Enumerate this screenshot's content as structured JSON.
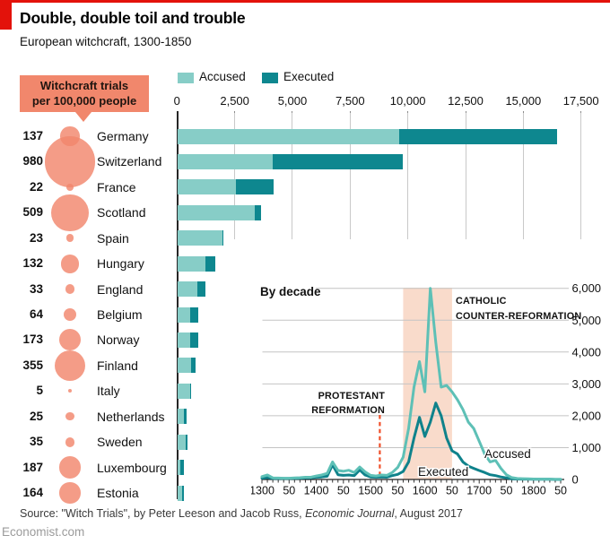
{
  "header": {
    "title": "Double, double toil and trouble",
    "subtitle": "European witchcraft, 1300-1850"
  },
  "legend": {
    "accused": "Accused",
    "executed": "Executed"
  },
  "callout": {
    "line1": "Witchcraft trials",
    "line2": "per 100,000 people"
  },
  "source": {
    "prefix": "Source: \"Witch Trials\", by Peter Leeson and Jacob Russ, ",
    "journal": "Economic Journal",
    "suffix": ", August 2017"
  },
  "footer": {
    "site": "Economist.com"
  },
  "colors": {
    "brand_red": "#E3120B",
    "bar_accused": "#87CDC7",
    "bar_executed": "#0E878F",
    "line_accused": "#5EC0B6",
    "line_executed": "#0F828B",
    "salmon": "#F1876C",
    "band_peach": "#F9DBCB",
    "dashed_orange": "#F0502A",
    "gridline": "#C9C9C9"
  },
  "chart_data": [
    {
      "type": "bar",
      "orientation": "horizontal",
      "stacked": true,
      "legend": [
        "Accused",
        "Executed"
      ],
      "x_ticks": [
        "0",
        "2,500",
        "5,000",
        "7,500",
        "10,000",
        "12,500",
        "15,000",
        "17,500"
      ],
      "xlim": [
        0,
        17500
      ],
      "bubble_metric": "Witchcraft trials per 100,000 people",
      "rows": [
        {
          "country": "Germany",
          "trials_per_100k": 137,
          "accused": 16450,
          "executed": 6850
        },
        {
          "country": "Switzerland",
          "trials_per_100k": 980,
          "accused": 9770,
          "executed": 5670
        },
        {
          "country": "France",
          "trials_per_100k": 22,
          "accused": 4170,
          "executed": 1660
        },
        {
          "country": "Scotland",
          "trials_per_100k": 509,
          "accused": 3600,
          "executed": 250
        },
        {
          "country": "Spain",
          "trials_per_100k": 23,
          "accused": 2000,
          "executed": 50
        },
        {
          "country": "Hungary",
          "trials_per_100k": 132,
          "accused": 1640,
          "executed": 440
        },
        {
          "country": "England",
          "trials_per_100k": 33,
          "accused": 1210,
          "executed": 370
        },
        {
          "country": "Belgium",
          "trials_per_100k": 64,
          "accused": 895,
          "executed": 360
        },
        {
          "country": "Norway",
          "trials_per_100k": 173,
          "accused": 885,
          "executed": 350
        },
        {
          "country": "Finland",
          "trials_per_100k": 355,
          "accused": 790,
          "executed": 210
        },
        {
          "country": "Italy",
          "trials_per_100k": 5,
          "accused": 590,
          "executed": 35
        },
        {
          "country": "Netherlands",
          "trials_per_100k": 25,
          "accused": 375,
          "executed": 90
        },
        {
          "country": "Sweden",
          "trials_per_100k": 35,
          "accused": 410,
          "executed": 45
        },
        {
          "country": "Luxembourg",
          "trials_per_100k": 187,
          "accused": 270,
          "executed": 140
        },
        {
          "country": "Estonia",
          "trials_per_100k": 164,
          "accused": 270,
          "executed": 65
        }
      ]
    },
    {
      "type": "line",
      "title": "By decade",
      "x_start": 1300,
      "x_end": 1850,
      "x_step": 10,
      "ylim": [
        0,
        6000
      ],
      "y_ticks": [
        "6,000",
        "5,000",
        "4,000",
        "3,000",
        "2,000",
        "1,000",
        "0"
      ],
      "x_tick_labels": [
        "1300",
        "50",
        "1400",
        "50",
        "1500",
        "50",
        "1600",
        "50",
        "1700",
        "50",
        "1800",
        "50"
      ],
      "series": [
        {
          "name": "Accused",
          "values": [
            90,
            140,
            50,
            45,
            40,
            40,
            50,
            55,
            70,
            70,
            110,
            140,
            190,
            550,
            280,
            260,
            290,
            220,
            390,
            240,
            130,
            110,
            140,
            130,
            220,
            380,
            700,
            1600,
            2900,
            3700,
            2750,
            6000,
            4300,
            2900,
            2950,
            2750,
            2500,
            2200,
            1800,
            1600,
            1200,
            800,
            550,
            600,
            350,
            150,
            60,
            30,
            25,
            20,
            15,
            10,
            10,
            10,
            5,
            5
          ]
        },
        {
          "name": "Executed",
          "values": [
            40,
            60,
            30,
            30,
            30,
            30,
            35,
            40,
            50,
            50,
            70,
            80,
            100,
            460,
            150,
            130,
            140,
            120,
            300,
            140,
            80,
            70,
            80,
            70,
            120,
            160,
            250,
            550,
            1300,
            1950,
            1350,
            1800,
            2400,
            2000,
            1300,
            900,
            800,
            550,
            420,
            350,
            280,
            220,
            150,
            120,
            80,
            50,
            20,
            15,
            10,
            10,
            5,
            5,
            5,
            5,
            0,
            0
          ]
        }
      ],
      "annotations": {
        "protestant": {
          "lines": [
            "PROTESTANT",
            "REFORMATION"
          ],
          "year": 1517,
          "style": "dashed-line"
        },
        "catholic": {
          "lines": [
            "CATHOLIC",
            "COUNTER-REFORMATION"
          ],
          "band": [
            1560,
            1650
          ],
          "style": "shaded-band"
        }
      }
    }
  ]
}
